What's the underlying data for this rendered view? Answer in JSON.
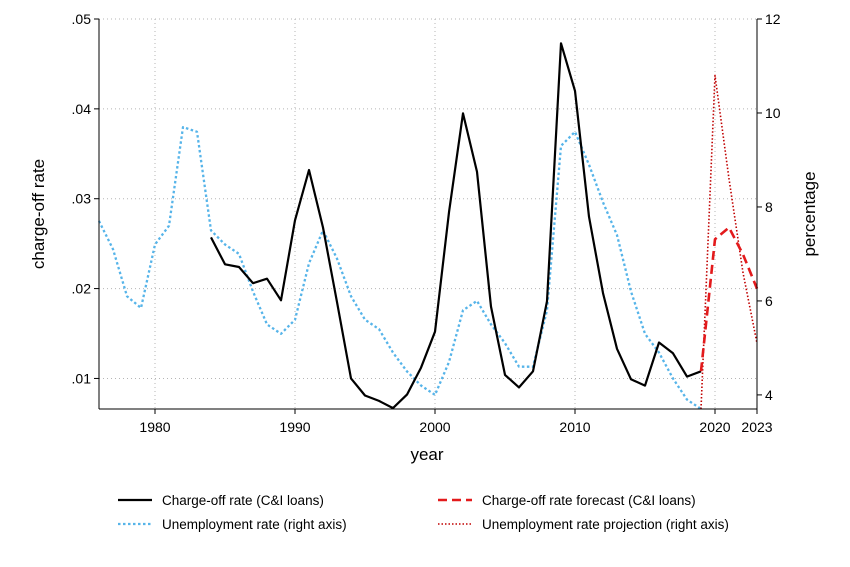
{
  "chart_data": {
    "type": "line",
    "xlabel": "year",
    "ylabel_left": "charge-off rate",
    "ylabel_right": "percentage",
    "xlim": [
      1976,
      2023
    ],
    "ylim_left": [
      0.0066,
      0.05
    ],
    "ylim_right": [
      3.7,
      12
    ],
    "x_ticks": [
      1980,
      1990,
      2000,
      2010,
      2020,
      2023
    ],
    "y_ticks_left": [
      ".01",
      ".02",
      ".03",
      ".04",
      ".05"
    ],
    "y_ticks_right": [
      "4",
      "6",
      "8",
      "10",
      "12"
    ],
    "grid": true,
    "legend_position": "bottom",
    "series": [
      {
        "name": "Charge-off rate (C&I loans)",
        "axis": "left",
        "color": "#000000",
        "style": "solid",
        "x": [
          1984,
          1985,
          1986,
          1987,
          1988,
          1989,
          1990,
          1991,
          1992,
          1993,
          1994,
          1995,
          1996,
          1997,
          1998,
          1999,
          2000,
          2001,
          2002,
          2003,
          2004,
          2005,
          2006,
          2007,
          2008,
          2009,
          2010,
          2011,
          2012,
          2013,
          2014,
          2015,
          2016,
          2017,
          2018,
          2019
        ],
        "y": [
          0.0257,
          0.0227,
          0.0224,
          0.0206,
          0.0211,
          0.0187,
          0.0276,
          0.0332,
          0.0268,
          0.0185,
          0.01,
          0.0081,
          0.0075,
          0.0067,
          0.0082,
          0.0112,
          0.0152,
          0.0285,
          0.0395,
          0.033,
          0.018,
          0.0104,
          0.009,
          0.0108,
          0.0186,
          0.0473,
          0.042,
          0.028,
          0.0195,
          0.0133,
          0.0099,
          0.0092,
          0.014,
          0.0128,
          0.0102,
          0.0108
        ]
      },
      {
        "name": "Unemployment rate (right axis)",
        "axis": "right",
        "color": "#56b4e9",
        "style": "dotted",
        "x": [
          1976,
          1977,
          1978,
          1979,
          1980,
          1981,
          1982,
          1983,
          1984,
          1985,
          1986,
          1987,
          1988,
          1989,
          1990,
          1991,
          1992,
          1993,
          1994,
          1995,
          1996,
          1997,
          1998,
          1999,
          2000,
          2001,
          2002,
          2003,
          2004,
          2005,
          2006,
          2007,
          2008,
          2009,
          2010,
          2011,
          2012,
          2013,
          2014,
          2015,
          2016,
          2017,
          2018,
          2019
        ],
        "y": [
          7.7,
          7.1,
          6.1,
          5.85,
          7.2,
          7.6,
          9.7,
          9.6,
          7.5,
          7.2,
          7.0,
          6.2,
          5.5,
          5.3,
          5.6,
          6.8,
          7.5,
          6.9,
          6.1,
          5.6,
          5.4,
          4.9,
          4.5,
          4.2,
          4.0,
          4.7,
          5.8,
          6.0,
          5.5,
          5.1,
          4.6,
          4.6,
          5.8,
          9.3,
          9.6,
          8.9,
          8.1,
          7.4,
          6.2,
          5.3,
          4.9,
          4.35,
          3.9,
          3.7
        ]
      },
      {
        "name": "Charge-off rate forecast (C&I loans)",
        "axis": "left",
        "color": "#e31a1c",
        "style": "dashed",
        "x": [
          2019,
          2020,
          2021,
          2022,
          2023
        ],
        "y": [
          0.0108,
          0.0255,
          0.0268,
          0.0238,
          0.02
        ]
      },
      {
        "name": "Unemployment rate projection (right axis)",
        "axis": "right",
        "color": "#c00000",
        "style": "dotted",
        "x": [
          2019,
          2020,
          2021,
          2022,
          2023
        ],
        "y": [
          3.7,
          10.8,
          8.6,
          6.6,
          5.1
        ]
      }
    ]
  }
}
